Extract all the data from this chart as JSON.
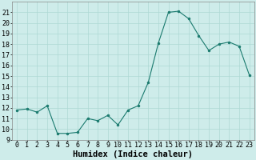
{
  "x": [
    0,
    1,
    2,
    3,
    4,
    5,
    6,
    7,
    8,
    9,
    10,
    11,
    12,
    13,
    14,
    15,
    16,
    17,
    18,
    19,
    20,
    21,
    22,
    23
  ],
  "y": [
    11.8,
    11.9,
    11.6,
    12.2,
    9.6,
    9.6,
    9.7,
    11.0,
    10.8,
    11.3,
    10.4,
    11.8,
    12.2,
    14.4,
    18.1,
    21.0,
    21.1,
    20.4,
    18.8,
    17.4,
    18.0,
    18.2,
    17.8,
    15.1
  ],
  "line_color": "#1a7a6e",
  "marker_color": "#1a7a6e",
  "bg_color": "#ceecea",
  "grid_color": "#aed8d4",
  "xlabel": "Humidex (Indice chaleur)",
  "ylim": [
    9,
    22
  ],
  "xlim": [
    -0.5,
    23.5
  ],
  "yticks": [
    9,
    10,
    11,
    12,
    13,
    14,
    15,
    16,
    17,
    18,
    19,
    20,
    21
  ],
  "xticks": [
    0,
    1,
    2,
    3,
    4,
    5,
    6,
    7,
    8,
    9,
    10,
    11,
    12,
    13,
    14,
    15,
    16,
    17,
    18,
    19,
    20,
    21,
    22,
    23
  ],
  "tick_label_fontsize": 6,
  "xlabel_fontsize": 7.5
}
